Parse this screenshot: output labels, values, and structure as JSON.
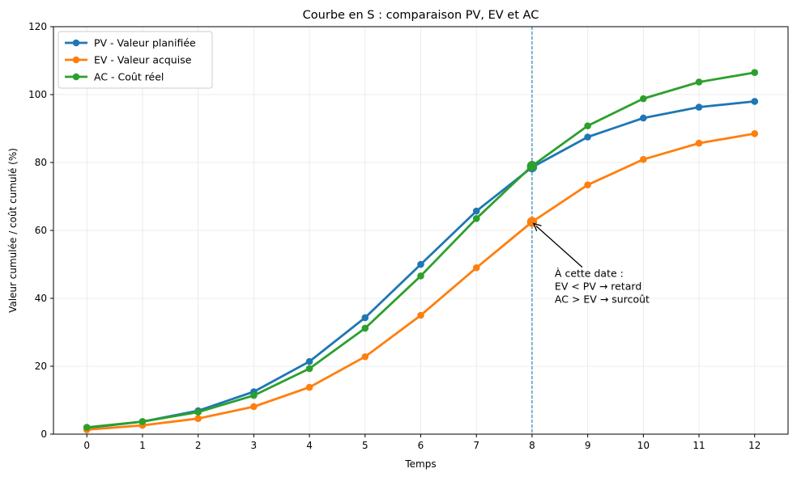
{
  "chart_data": {
    "type": "line",
    "title": "Courbe en S : comparaison PV, EV et AC",
    "xlabel": "Temps",
    "ylabel": "Valeur cumulée / coût cumulé (%)",
    "x": [
      0,
      1,
      2,
      3,
      4,
      5,
      6,
      7,
      8,
      9,
      10,
      11,
      12
    ],
    "xlim": [
      -0.6,
      12.6
    ],
    "ylim": [
      0,
      120
    ],
    "xticks": [
      "0",
      "1",
      "2",
      "3",
      "4",
      "5",
      "6",
      "7",
      "8",
      "9",
      "10",
      "11",
      "12"
    ],
    "yticks": [
      "0",
      "20",
      "40",
      "60",
      "80",
      "100",
      "120"
    ],
    "grid": true,
    "legend_position": "top-left",
    "series": [
      {
        "name": "PV - Valeur planifiée",
        "color": "#1f77b4",
        "values": [
          1.8,
          3.7,
          6.9,
          12.5,
          21.4,
          34.3,
          50.0,
          65.7,
          78.6,
          87.5,
          93.1,
          96.3,
          98.0
        ]
      },
      {
        "name": "EV - Valeur acquise",
        "color": "#ff7f0e",
        "values": [
          1.3,
          2.6,
          4.6,
          8.1,
          13.8,
          22.8,
          35.0,
          49.0,
          62.5,
          73.4,
          80.9,
          85.7,
          88.5
        ]
      },
      {
        "name": "AC - Coût réel",
        "color": "#2ca02c",
        "values": [
          2.0,
          3.7,
          6.5,
          11.4,
          19.3,
          31.2,
          46.6,
          63.5,
          79.0,
          90.8,
          98.8,
          103.7,
          106.5
        ]
      }
    ],
    "status_date": 8,
    "annotation": {
      "lines": [
        "À cette date :",
        "EV < PV → retard",
        "AC > EV → surcoût"
      ],
      "points_to_x": 8,
      "points_to_y": 62.5
    }
  }
}
